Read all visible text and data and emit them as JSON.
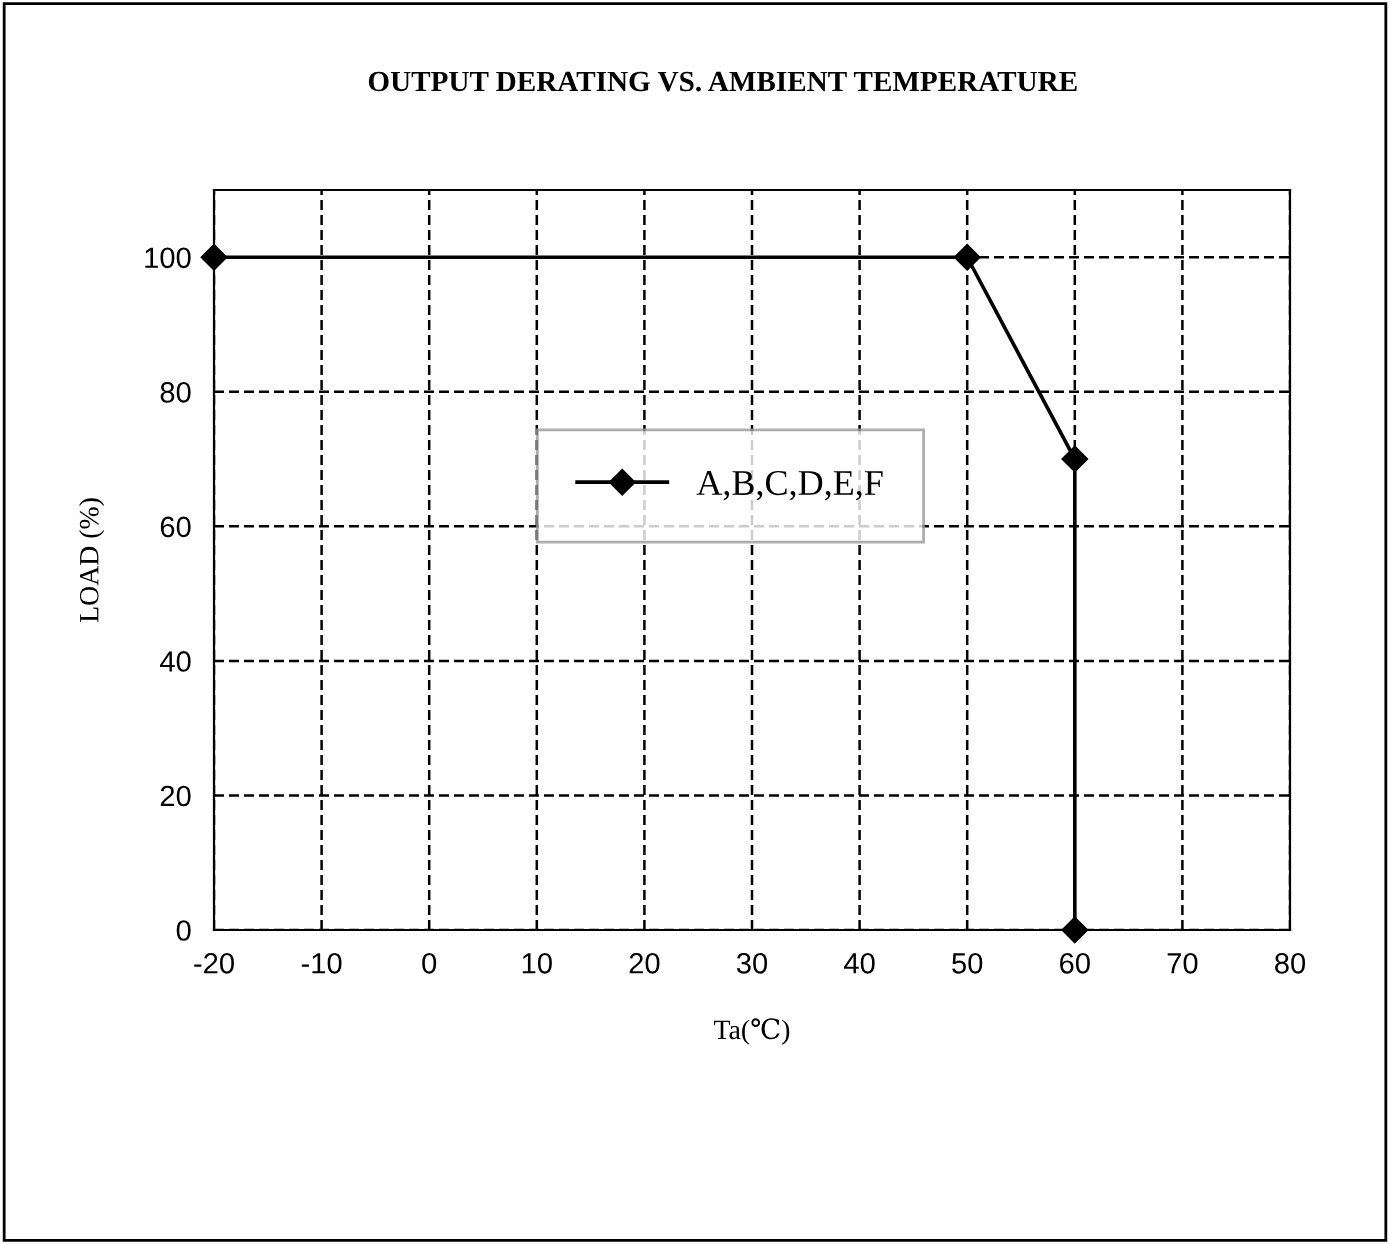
{
  "chart_data": {
    "type": "line",
    "title": "OUTPUT DERATING VS. AMBIENT TEMPERATURE",
    "xlabel": "Ta(℃)",
    "ylabel": "LOAD (%)",
    "series": [
      {
        "name": "A,B,C,D,E,F",
        "color": "#000000",
        "x": [
          -20,
          50,
          60,
          60
        ],
        "values": [
          100,
          100,
          70,
          0
        ]
      }
    ],
    "xlim": [
      -20,
      80
    ],
    "xticks": [
      -20,
      -10,
      0,
      10,
      20,
      30,
      40,
      50,
      60,
      70,
      80
    ],
    "ylim": [
      0,
      110
    ],
    "yticks": [
      0,
      20,
      40,
      60,
      80,
      100
    ],
    "grid": true,
    "legend": "center",
    "marker": "diamond",
    "line_style": "solid"
  }
}
